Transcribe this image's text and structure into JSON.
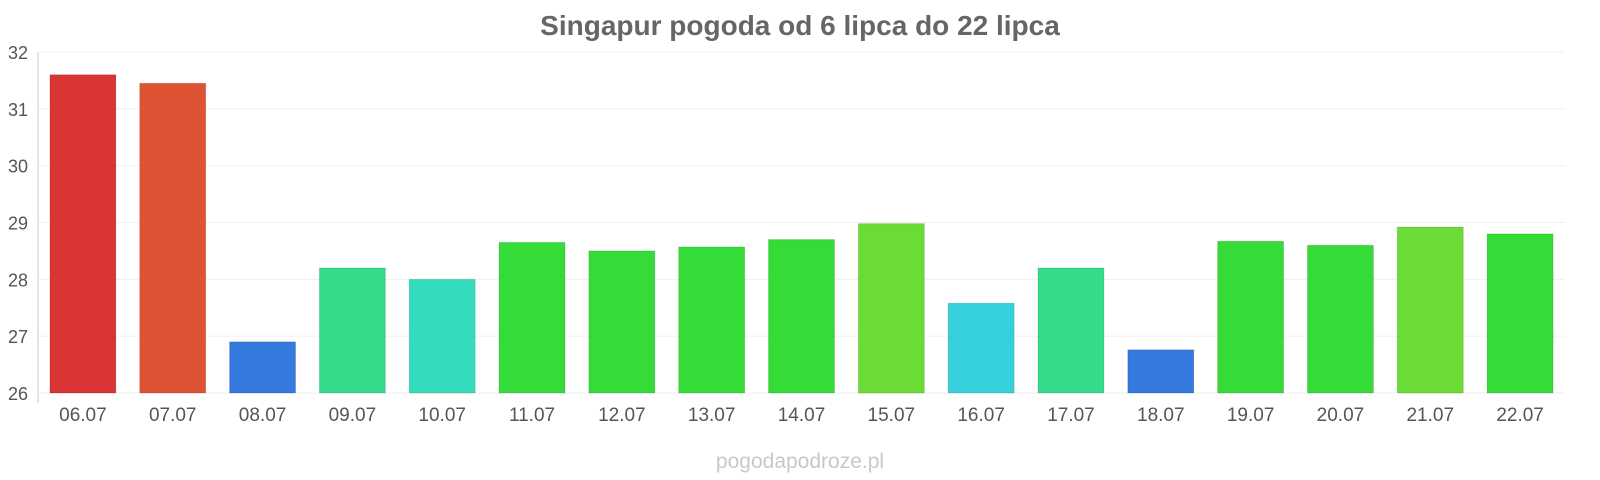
{
  "chart_data": {
    "type": "bar",
    "title": "Singapur pogoda od 6 lipca do 22 lipca",
    "xlabel": "",
    "ylabel": "",
    "ylim": [
      26,
      32
    ],
    "yticks": [
      26,
      27,
      28,
      29,
      30,
      31,
      32
    ],
    "grid": true,
    "categories": [
      "06.07",
      "07.07",
      "08.07",
      "09.07",
      "10.07",
      "11.07",
      "12.07",
      "13.07",
      "14.07",
      "15.07",
      "16.07",
      "17.07",
      "18.07",
      "19.07",
      "20.07",
      "21.07",
      "22.07"
    ],
    "values": [
      31.6,
      31.45,
      26.9,
      28.2,
      28.0,
      28.65,
      28.5,
      28.57,
      28.7,
      28.98,
      27.58,
      28.2,
      26.76,
      28.67,
      28.6,
      28.92,
      28.8
    ],
    "colors": [
      "#db3434",
      "#de5334",
      "#3479de",
      "#35db8a",
      "#35dbbd",
      "#35dc37",
      "#35dc37",
      "#35dc37",
      "#35dc37",
      "#6adc35",
      "#35d0db",
      "#35db8a",
      "#3479de",
      "#35dc37",
      "#35dc37",
      "#6adc35",
      "#35dc37"
    ]
  },
  "watermark": "pogodapodroze.pl"
}
